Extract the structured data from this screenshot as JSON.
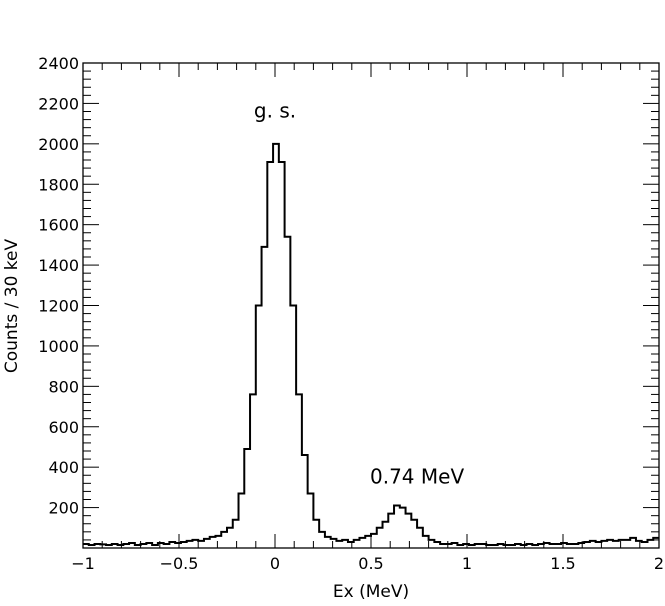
{
  "chart_data": {
    "type": "histogram",
    "title": "",
    "xlabel": "Ex (MeV)",
    "ylabel": "Counts / 30 keV",
    "xlim": [
      -1,
      2
    ],
    "ylim": [
      0,
      2400
    ],
    "bin_width": 0.03,
    "grid": false,
    "legend": "none",
    "x_tick_labels": [
      "−1",
      "−0.5",
      "0",
      "0.5",
      "1",
      "1.5",
      "2"
    ],
    "x_ticks": [
      -1,
      -0.5,
      0,
      0.5,
      1,
      1.5,
      2
    ],
    "y_tick_labels": [
      "200",
      "400",
      "600",
      "800",
      "1000",
      "1200",
      "1400",
      "1600",
      "1800",
      "2000",
      "2200",
      "2400"
    ],
    "y_ticks": [
      200,
      400,
      600,
      800,
      1000,
      1200,
      1400,
      1600,
      1800,
      2000,
      2200,
      2400
    ],
    "annotations": [
      {
        "text": "g. s.",
        "x": 0.0,
        "y": 2130
      },
      {
        "text": "0.74 MeV",
        "x": 0.74,
        "y": 320
      }
    ],
    "series": [
      {
        "counts": [
          20,
          15,
          20,
          18,
          15,
          20,
          15,
          20,
          25,
          15,
          20,
          25,
          15,
          25,
          20,
          30,
          25,
          30,
          35,
          40,
          35,
          45,
          55,
          60,
          80,
          100,
          140,
          270,
          490,
          760,
          1200,
          1490,
          1910,
          2000,
          1910,
          1540,
          1200,
          760,
          460,
          270,
          140,
          80,
          55,
          45,
          35,
          40,
          30,
          40,
          50,
          60,
          70,
          100,
          130,
          170,
          210,
          200,
          170,
          140,
          100,
          60,
          40,
          30,
          20,
          20,
          25,
          15,
          20,
          15,
          20,
          20,
          15,
          15,
          20,
          15,
          15,
          20,
          15,
          20,
          15,
          20,
          25,
          20,
          20,
          25,
          20,
          20,
          25,
          30,
          35,
          30,
          35,
          40,
          35,
          40,
          40,
          50,
          35,
          30,
          40,
          50
        ],
        "color": "#000000"
      }
    ]
  }
}
